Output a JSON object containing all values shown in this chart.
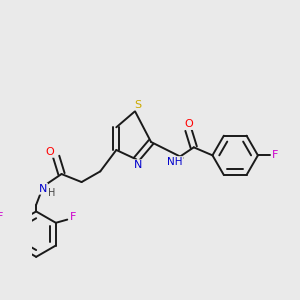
{
  "background_color": "#eaeaea",
  "bond_color": "#1a1a1a",
  "atom_colors": {
    "O": "#ff0000",
    "N": "#0000cc",
    "S": "#ccaa00",
    "F": "#cc00cc",
    "H": "#444444",
    "C": "#1a1a1a"
  },
  "figsize": [
    3.0,
    3.0
  ],
  "dpi": 100
}
